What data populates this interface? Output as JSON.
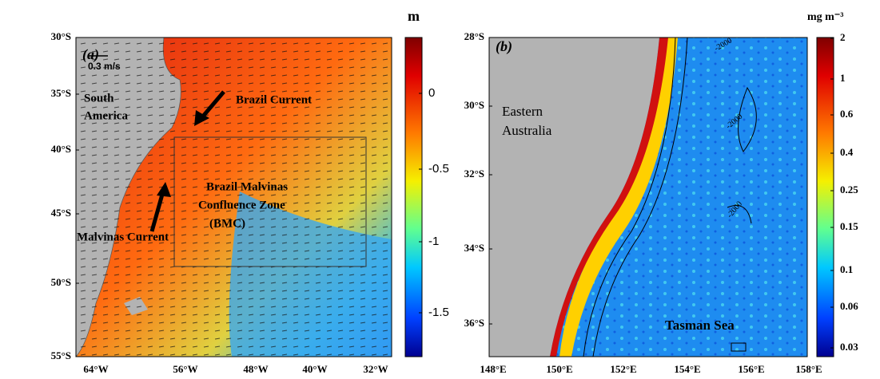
{
  "panel_a": {
    "label": "(a)",
    "scale_label": "0.3 m/s",
    "regions": [
      "South",
      "America",
      "Brazil Current",
      "Brazil Malvinas",
      "Confluence Zone",
      "(BMC)",
      "Malvinas Current"
    ],
    "y_labels": [
      "30°S",
      "35°S",
      "40°S",
      "45°S",
      "50°S",
      "55°S"
    ],
    "x_labels": [
      "64°W",
      "56°W",
      "48°W",
      "40°W",
      "32°W"
    ],
    "colorbar": {
      "unit": "m",
      "ticks": [
        0,
        -0.5,
        -1,
        -1.5
      ]
    }
  },
  "panel_b": {
    "label": "(b)",
    "regions": [
      "Eastern",
      "Australia",
      "Tasman Sea"
    ],
    "contour_labels": [
      "-2000",
      "-2000",
      "-2000"
    ],
    "y_labels": [
      "28°S",
      "30°S",
      "32°S",
      "34°S",
      "36°S"
    ],
    "x_labels": [
      "148°E",
      "150°E",
      "152°E",
      "154°E",
      "156°E",
      "158°E"
    ],
    "colorbar": {
      "unit": "mg m⁻³",
      "ticks": [
        2,
        1,
        0.6,
        0.4,
        0.25,
        0.15,
        0.1,
        0.06,
        0.03
      ]
    }
  }
}
